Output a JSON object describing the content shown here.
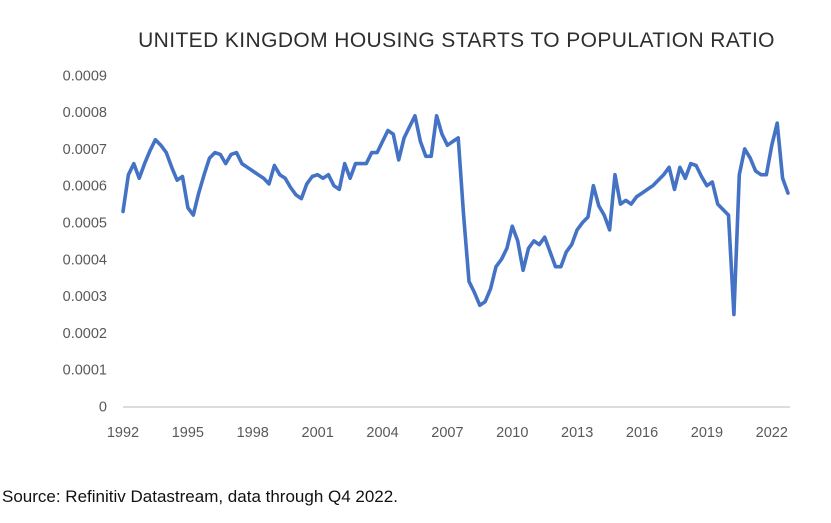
{
  "chart": {
    "title": "UNITED KINGDOM HOUSING STARTS TO POPULATION RATIO"
  },
  "footer": {
    "source": "Source: Refinitiv Datastream, data through Q4 2022."
  },
  "chart_data": {
    "type": "line",
    "title": "UNITED KINGDOM HOUSING STARTS TO POPULATION RATIO",
    "series_name": "UK housing starts to population ratio",
    "frequency": "quarterly",
    "start_period": "1992 Q1",
    "end_period": "2022 Q4",
    "unit_scale": 0.0001,
    "values_x1e4": [
      5.3,
      6.3,
      6.6,
      6.2,
      6.6,
      6.95,
      7.25,
      7.1,
      6.9,
      6.5,
      6.15,
      6.25,
      5.4,
      5.2,
      5.8,
      6.3,
      6.75,
      6.9,
      6.85,
      6.6,
      6.85,
      6.9,
      6.6,
      6.5,
      6.4,
      6.3,
      6.2,
      6.05,
      6.55,
      6.3,
      6.2,
      5.95,
      5.75,
      5.65,
      6.05,
      6.25,
      6.3,
      6.2,
      6.3,
      6.0,
      5.9,
      6.6,
      6.2,
      6.6,
      6.6,
      6.6,
      6.9,
      6.9,
      7.2,
      7.5,
      7.4,
      6.7,
      7.3,
      7.6,
      7.9,
      7.2,
      6.8,
      6.8,
      7.9,
      7.4,
      7.1,
      7.2,
      7.3,
      5.2,
      3.4,
      3.1,
      2.75,
      2.85,
      3.2,
      3.8,
      4.0,
      4.3,
      4.9,
      4.5,
      3.7,
      4.3,
      4.5,
      4.4,
      4.6,
      4.2,
      3.8,
      3.8,
      4.2,
      4.4,
      4.8,
      5.0,
      5.15,
      6.0,
      5.45,
      5.2,
      4.8,
      6.3,
      5.5,
      5.6,
      5.5,
      5.7,
      5.8,
      5.9,
      6.0,
      6.15,
      6.3,
      6.5,
      5.9,
      6.5,
      6.2,
      6.6,
      6.55,
      6.25,
      6.0,
      6.1,
      5.5,
      5.35,
      5.2,
      2.5,
      6.3,
      7.0,
      6.75,
      6.4,
      6.3,
      6.3,
      7.1,
      7.7,
      6.2,
      5.8
    ],
    "x_tick_labels": [
      "1992",
      "1995",
      "1998",
      "2001",
      "2004",
      "2007",
      "2010",
      "2013",
      "2016",
      "2019",
      "2022"
    ],
    "x_tick_every_n_points": 12,
    "y_tick_labels": [
      "0",
      "0.0001",
      "0.0002",
      "0.0003",
      "0.0004",
      "0.0005",
      "0.0006",
      "0.0007",
      "0.0008",
      "0.0009"
    ],
    "ylim_x1e4": [
      0,
      9
    ],
    "grid": false,
    "legend": false,
    "line_color": "#4472C4",
    "axis_color": "#c8c8c8",
    "tick_label_color": "#595959"
  }
}
